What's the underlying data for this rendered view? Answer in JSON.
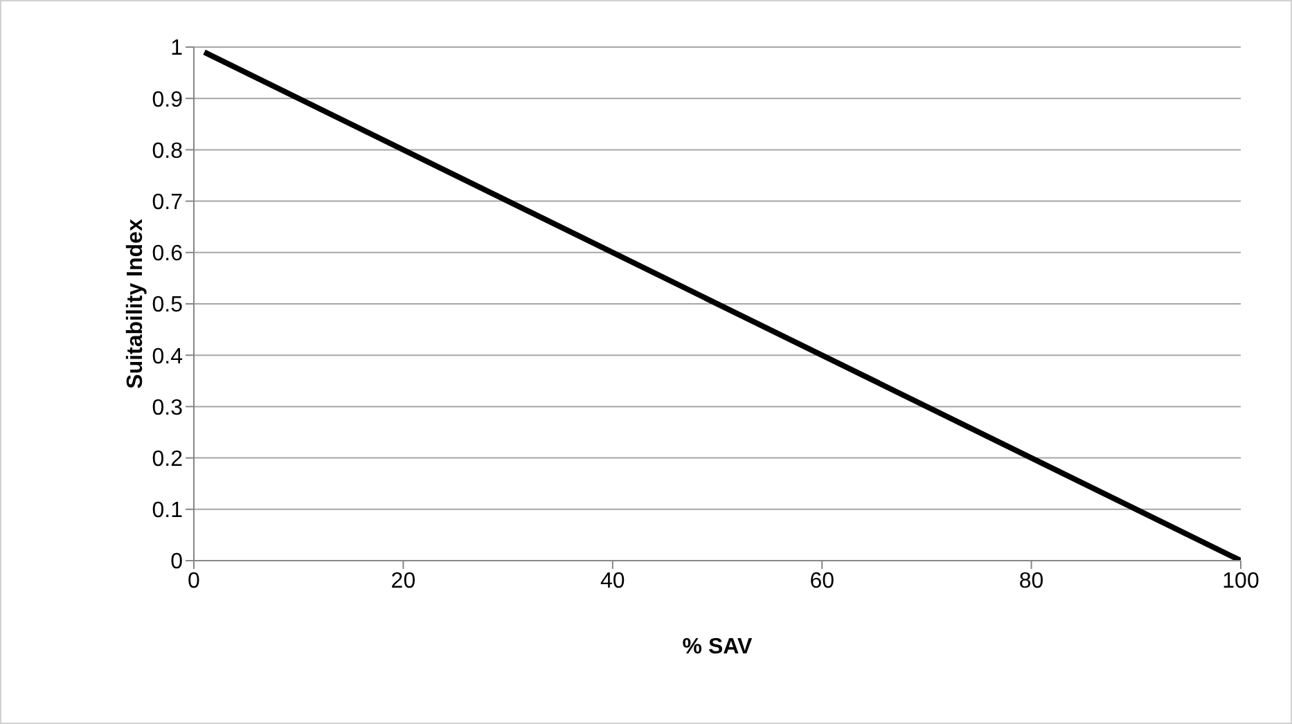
{
  "chart_data": {
    "type": "line",
    "xlabel": "% SAV",
    "ylabel": "Suitability Index",
    "x": [
      1,
      100
    ],
    "series": [
      {
        "color": "#000000",
        "values": [
          0.99,
          0
        ]
      }
    ],
    "xlim": [
      0,
      100
    ],
    "xticks": [
      0,
      20,
      40,
      60,
      80,
      100
    ],
    "ylim": [
      0,
      1
    ],
    "yticks": [
      0,
      0.1,
      0.2,
      0.3,
      0.4,
      0.5,
      0.6,
      0.7,
      0.8,
      0.9,
      1
    ],
    "grid": "y",
    "legend": false,
    "marker": "none",
    "line_style": "solid"
  }
}
